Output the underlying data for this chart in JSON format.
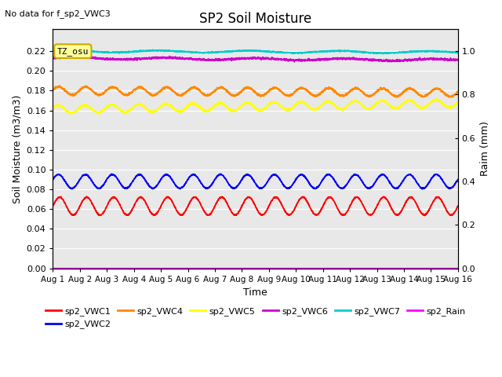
{
  "title": "SP2 Soil Moisture",
  "no_data_text": "No data for f_sp2_VWC3",
  "tz_label": "TZ_osu",
  "xlabel": "Time",
  "ylabel_left": "Soil Moisture (m3/m3)",
  "ylabel_right": "Raim (mm)",
  "ylim_left": [
    0.0,
    0.2422
  ],
  "ylim_right": [
    0.0,
    1.1
  ],
  "xlim": [
    0,
    15
  ],
  "x_ticks": [
    0,
    1,
    2,
    3,
    4,
    5,
    6,
    7,
    8,
    9,
    10,
    11,
    12,
    13,
    14,
    15
  ],
  "x_tick_labels": [
    "Aug 1",
    "Aug 2",
    "Aug 3",
    "Aug 4",
    "Aug 5",
    "Aug 6",
    "Aug 7",
    "Aug 8",
    "Aug 9",
    "Aug 10",
    "Aug 11",
    "Aug 12",
    "Aug 13",
    "Aug 14",
    "Aug 15",
    "Aug 16"
  ],
  "yticks_left": [
    0.0,
    0.02,
    0.04,
    0.06,
    0.08,
    0.1,
    0.12,
    0.14,
    0.16,
    0.18,
    0.2,
    0.22
  ],
  "yticks_right": [
    0.0,
    0.2,
    0.4,
    0.6,
    0.8,
    1.0
  ],
  "background_color": "#e8e8e8",
  "series": [
    {
      "name": "sp2_VWC1",
      "color": "#ff0000",
      "base": 0.063,
      "amp": 0.009,
      "freq": 1.0,
      "phase": 0.0,
      "noise": 0.0003,
      "trend": 0.0
    },
    {
      "name": "sp2_VWC2",
      "color": "#0000ff",
      "base": 0.088,
      "amp": 0.007,
      "freq": 1.0,
      "phase": 0.3,
      "noise": 0.0003,
      "trend": 0.0
    },
    {
      "name": "sp2_VWC4",
      "color": "#ff8800",
      "base": 0.18,
      "amp": 0.004,
      "freq": 1.0,
      "phase": 0.2,
      "noise": 0.0005,
      "trend": -0.002
    },
    {
      "name": "sp2_VWC5",
      "color": "#ffff00",
      "base": 0.161,
      "amp": 0.004,
      "freq": 1.0,
      "phase": 0.4,
      "noise": 0.0005,
      "trend": 0.006
    },
    {
      "name": "sp2_VWC6",
      "color": "#cc00cc",
      "base": 0.213,
      "amp": 0.001,
      "freq": 0.3,
      "phase": 0.0,
      "noise": 0.0005,
      "trend": -0.002
    },
    {
      "name": "sp2_VWC7",
      "color": "#00cccc",
      "base": 0.22,
      "amp": 0.001,
      "freq": 0.3,
      "phase": 0.5,
      "noise": 0.0003,
      "trend": -0.001
    },
    {
      "name": "sp2_Rain",
      "color": "#ff00ff",
      "base": 0.0,
      "amp": 0.0,
      "freq": 0.0,
      "phase": 0.0,
      "noise": 0.0,
      "trend": 0.0,
      "rain": true
    }
  ],
  "legend_entries": [
    {
      "label": "sp2_VWC1",
      "color": "#ff0000"
    },
    {
      "label": "sp2_VWC2",
      "color": "#0000ff"
    },
    {
      "label": "sp2_VWC4",
      "color": "#ff8800"
    },
    {
      "label": "sp2_VWC5",
      "color": "#ffff00"
    },
    {
      "label": "sp2_VWC6",
      "color": "#cc00cc"
    },
    {
      "label": "sp2_VWC7",
      "color": "#00cccc"
    },
    {
      "label": "sp2_Rain",
      "color": "#ff00ff"
    }
  ]
}
